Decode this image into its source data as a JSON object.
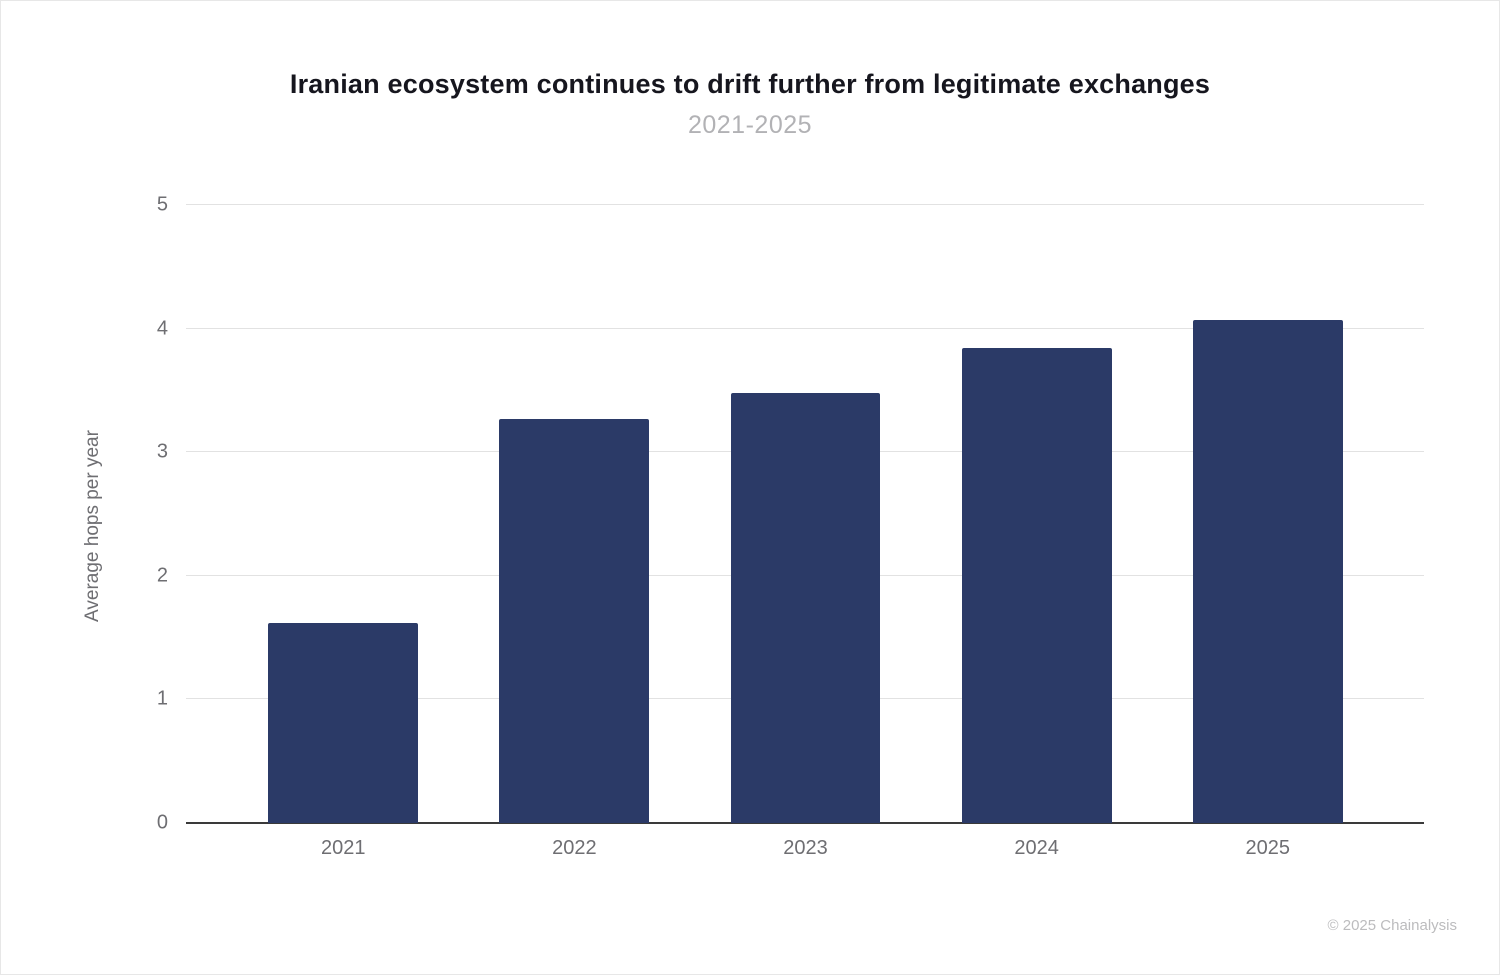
{
  "chart_data": {
    "type": "bar",
    "title": "Iranian ecosystem continues to drift further from legitimate exchanges",
    "subtitle": "2021-2025",
    "categories": [
      "2021",
      "2022",
      "2023",
      "2024",
      "2025"
    ],
    "values": [
      1.62,
      3.27,
      3.48,
      3.84,
      4.07
    ],
    "xlabel": "",
    "ylabel": "Average hops per year",
    "ylim": [
      0,
      5
    ],
    "y_ticks": [
      0,
      1,
      2,
      3,
      4,
      5
    ],
    "grid": "horizontal",
    "legend": "none",
    "bar_color": "#2b3a67",
    "footer": "© 2025 Chainalysis"
  },
  "colors": {
    "title_text": "#16161e",
    "subtitle_text": "#b2b2b5",
    "axis_text": "#6e6e72",
    "gridline": "#e2e2e2",
    "baseline": "#3a3a3a",
    "footer_text": "#bcbcbe",
    "page_border": "#e7e7e7",
    "background": "#ffffff"
  }
}
